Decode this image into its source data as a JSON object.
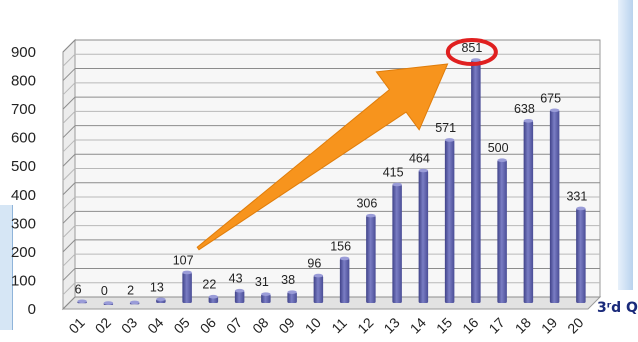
{
  "chart_data": {
    "type": "bar",
    "title": "",
    "xlabel": "",
    "ylabel": "",
    "categories": [
      "01",
      "02",
      "03",
      "04",
      "05",
      "06",
      "07",
      "08",
      "09",
      "10",
      "11",
      "12",
      "13",
      "14",
      "15",
      "16",
      "17",
      "18",
      "19",
      "20"
    ],
    "values": [
      6,
      0,
      2,
      13,
      107,
      22,
      43,
      31,
      38,
      96,
      156,
      306,
      415,
      464,
      571,
      851,
      500,
      638,
      675,
      331
    ],
    "ylim": [
      0,
      900
    ],
    "yticks": [
      0,
      100,
      200,
      300,
      400,
      500,
      600,
      700,
      800,
      900
    ],
    "grid": true,
    "legend": "none",
    "data_labels": true,
    "highlight": {
      "category": "16",
      "value": 851,
      "marker": "circle",
      "color": "#e02020"
    },
    "annotation_arrow": {
      "from_category": "05",
      "to_category": "15",
      "color": "#f7941d"
    },
    "bar_color": "#5b5ea6"
  },
  "side_label": {
    "text": "3ʳd Q"
  }
}
